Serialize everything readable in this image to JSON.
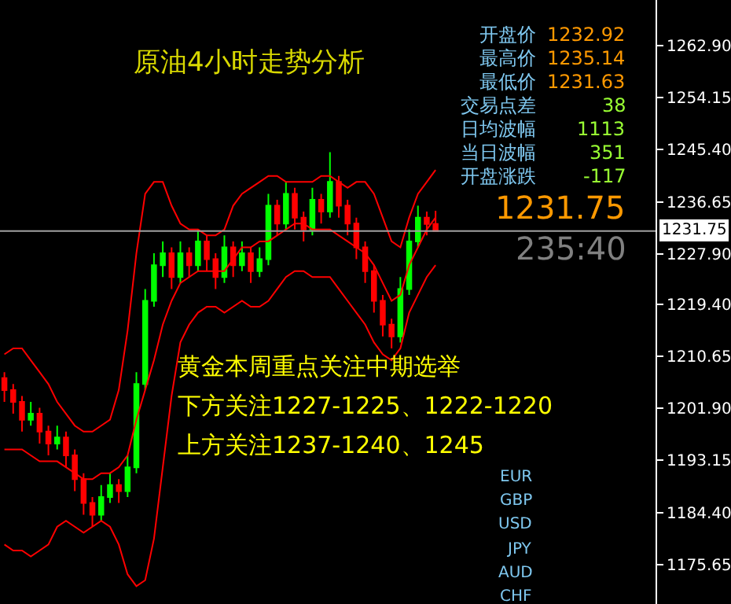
{
  "chart_data": {
    "type": "candlestick",
    "categories": [
      null,
      null,
      null,
      null,
      null,
      null,
      null,
      null,
      null,
      null,
      null,
      null,
      null,
      null,
      null,
      null,
      null,
      null,
      null,
      null,
      null,
      null,
      null,
      null,
      null,
      null,
      null,
      null,
      null,
      null,
      null,
      null,
      null,
      null,
      null,
      null,
      null,
      null,
      null,
      null,
      null,
      null,
      null,
      null,
      null,
      null,
      null,
      null,
      null,
      null
    ],
    "ylim": [
      1169,
      1270.6
    ],
    "yticks": [
      {
        "value": 1262.9,
        "label": "1262.90"
      },
      {
        "value": 1254.15,
        "label": "1254.15"
      },
      {
        "value": 1245.4,
        "label": "1245.40"
      },
      {
        "value": 1236.65,
        "label": "1236.65"
      },
      {
        "value": 1227.9,
        "label": "1227.90"
      },
      {
        "value": 1219.4,
        "label": "1219.40"
      },
      {
        "value": 1210.65,
        "label": "1210.65"
      },
      {
        "value": 1201.9,
        "label": "1201.90"
      },
      {
        "value": 1193.15,
        "label": "1193.15"
      },
      {
        "value": 1184.4,
        "label": "1184.40"
      },
      {
        "value": 1175.65,
        "label": "1175.65"
      }
    ],
    "tick_labels": "y",
    "grid": false,
    "series": [
      {
        "colors": [
          "#ff0000",
          "#ff0000",
          "#ff0000",
          "#00ff00",
          "#ff0000",
          "#ff0000",
          "#00ff00",
          "#ff0000",
          "#ff0000",
          "#ff0000",
          "#ff0000",
          "#00ff00",
          "#00ff00",
          "#ff0000",
          "#00ff00",
          "#00ff00",
          "#00ff00",
          "#00ff00",
          "#00ff00",
          "#ff0000",
          "#00ff00",
          "#ff0000",
          "#00ff00",
          "#ff0000",
          "#ff0000",
          "#00ff00",
          "#ff0000",
          "#00ff00",
          "#ff0000",
          "#00ff00",
          "#00ff00",
          "#ff0000",
          "#00ff00",
          "#ff0000",
          "#ff0000",
          "#00ff00",
          "#ff0000",
          "#00ff00",
          "#ff0000",
          "#ff0000",
          "#ff0000",
          "#ff0000",
          "#ff0000",
          "#ff0000",
          "#ff0000",
          "#00ff00",
          "#00ff00",
          "#00ff00",
          "#ff0000",
          "#ff0000"
        ],
        "ohlc": [
          [
            1207,
            1208,
            1203,
            1205
          ],
          [
            1205,
            1206,
            1201,
            1203
          ],
          [
            1203,
            1204,
            1198,
            1200
          ],
          [
            1200,
            1203,
            1199,
            1201
          ],
          [
            1201,
            1202,
            1196,
            1198
          ],
          [
            1198,
            1199,
            1194,
            1196
          ],
          [
            1196,
            1199,
            1195,
            1197
          ],
          [
            1197,
            1198,
            1192,
            1194
          ],
          [
            1194,
            1195,
            1188,
            1190
          ],
          [
            1190,
            1191,
            1184,
            1186
          ],
          [
            1186,
            1187,
            1182,
            1184
          ],
          [
            1184,
            1189,
            1183,
            1187
          ],
          [
            1187,
            1191,
            1186,
            1189
          ],
          [
            1189,
            1190,
            1186,
            1188
          ],
          [
            1188,
            1194,
            1187,
            1192
          ],
          [
            1192,
            1208,
            1191,
            1206
          ],
          [
            1206,
            1222,
            1205,
            1220
          ],
          [
            1220,
            1228,
            1219,
            1226
          ],
          [
            1226,
            1230,
            1224,
            1228
          ],
          [
            1228,
            1229,
            1222,
            1224
          ],
          [
            1224,
            1230,
            1223,
            1228
          ],
          [
            1228,
            1229,
            1224,
            1226
          ],
          [
            1226,
            1232,
            1225,
            1230
          ],
          [
            1230,
            1231,
            1225,
            1227
          ],
          [
            1227,
            1228,
            1222,
            1224
          ],
          [
            1224,
            1231,
            1223,
            1229
          ],
          [
            1229,
            1230,
            1224,
            1226
          ],
          [
            1226,
            1230,
            1225,
            1228
          ],
          [
            1228,
            1229,
            1223,
            1225
          ],
          [
            1225,
            1229,
            1224,
            1227
          ],
          [
            1227,
            1238,
            1226,
            1236
          ],
          [
            1236,
            1237,
            1231,
            1233
          ],
          [
            1233,
            1240,
            1232,
            1238
          ],
          [
            1238,
            1239,
            1232,
            1234
          ],
          [
            1234,
            1235,
            1230,
            1232
          ],
          [
            1232,
            1239,
            1231,
            1237
          ],
          [
            1237,
            1238,
            1233,
            1235
          ],
          [
            1235,
            1245,
            1234,
            1240
          ],
          [
            1240,
            1241,
            1234,
            1236
          ],
          [
            1236,
            1237,
            1231,
            1233
          ],
          [
            1233,
            1234,
            1227,
            1229
          ],
          [
            1229,
            1230,
            1223,
            1225
          ],
          [
            1225,
            1226,
            1218,
            1220
          ],
          [
            1220,
            1221,
            1214,
            1216
          ],
          [
            1216,
            1217,
            1212,
            1214
          ],
          [
            1214,
            1224,
            1213,
            1222
          ],
          [
            1222,
            1232,
            1221,
            1230
          ],
          [
            1230,
            1236,
            1229,
            1234
          ],
          [
            1234,
            1235,
            1231,
            1232.92
          ],
          [
            1232.92,
            1235.14,
            1231.63,
            1231.75
          ]
        ]
      },
      {
        "type": "line",
        "color": "#ff0000",
        "values": [
          1211,
          1212,
          1212,
          1210,
          1208,
          1206,
          1203,
          1201,
          1199,
          1198,
          1198,
          1199,
          1200,
          1205,
          1215,
          1228,
          1238,
          1240,
          1240,
          1236,
          1233,
          1232,
          1232,
          1231,
          1231,
          1232,
          1236,
          1238,
          1239,
          1240,
          1241,
          1241,
          1240,
          1240,
          1240,
          1240,
          1241,
          1241,
          1240,
          1239,
          1240,
          1240,
          1238,
          1234,
          1230,
          1229,
          1234,
          1238,
          1240,
          1242
        ]
      },
      {
        "type": "line",
        "color": "#ff0000",
        "values": [
          1195,
          1195,
          1195,
          1194,
          1193,
          1193,
          1193,
          1192,
          1191,
          1190,
          1190,
          1191,
          1191,
          1192,
          1194,
          1200,
          1205,
          1210,
          1216,
          1220,
          1223,
          1224,
          1225,
          1225,
          1225,
          1225,
          1227,
          1229,
          1229,
          1230,
          1230,
          1231,
          1232,
          1233,
          1233,
          1232,
          1232,
          1232,
          1231,
          1230,
          1229,
          1228,
          1226,
          1223,
          1220,
          1221,
          1226,
          1229,
          1232,
          1234
        ]
      },
      {
        "type": "line",
        "color": "#ff0000",
        "values": [
          1179,
          1178,
          1178,
          1177,
          1178,
          1179,
          1182,
          1183,
          1182,
          1181,
          1182,
          1183,
          1182,
          1179,
          1174,
          1172,
          1173,
          1180,
          1192,
          1204,
          1213,
          1216,
          1218,
          1219,
          1219,
          1218,
          1219,
          1220,
          1219,
          1219,
          1220,
          1222,
          1224,
          1225,
          1225,
          1224,
          1224,
          1224,
          1222,
          1220,
          1218,
          1216,
          1213,
          1211,
          1210,
          1212,
          1218,
          1221,
          1224,
          1226
        ]
      }
    ],
    "ref_lines": [
      {
        "axis": "y",
        "value": 1231.75,
        "label": "1231.75",
        "color": "#a0a0a0"
      }
    ],
    "annotations": [
      "原油4小时走势分析",
      "开盘价",
      "1232.92",
      "最高价",
      "1235.14",
      "最低价",
      "1231.63",
      "交易点差",
      "38",
      "日均波幅",
      "1113",
      "当日波幅",
      "351",
      "开盘涨跌",
      "-117",
      "1231.75",
      "235:40",
      "黄金本周重点关注中期选举",
      "下方关注1227-1225、1222-1220",
      "上方关注1237-1240、1245",
      "EUR",
      "GBP",
      "USD",
      "JPY",
      "AUD",
      "CHF"
    ]
  }
}
